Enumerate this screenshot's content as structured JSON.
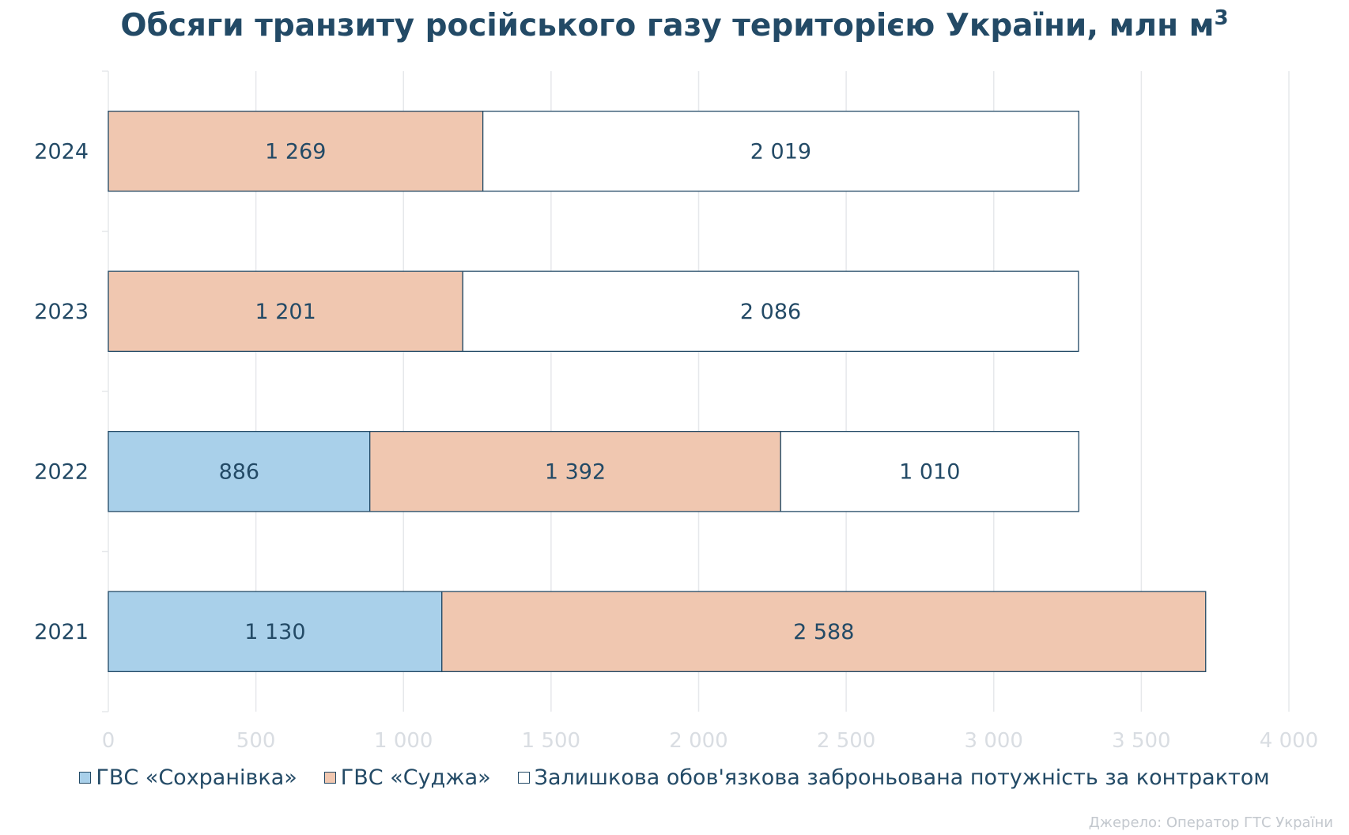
{
  "chart_data": {
    "type": "bar",
    "orientation": "horizontal",
    "stacked": true,
    "title": "Обсяги транзиту російського газу територією України, млн м",
    "title_superscript": "3",
    "categories": [
      "2024",
      "2023",
      "2022",
      "2021"
    ],
    "series": [
      {
        "name": "ГВС «Сохранівка»",
        "color": "#a9d0ea",
        "values": [
          null,
          null,
          886,
          1130
        ],
        "labels": [
          "",
          "",
          "886",
          "1 130"
        ]
      },
      {
        "name": "ГВС «Суджа»",
        "color": "#f0c7b0",
        "values": [
          1269,
          1201,
          1392,
          2588
        ],
        "labels": [
          "1 269",
          "1 201",
          "1 392",
          "2 588"
        ]
      },
      {
        "name": "Залишкова обов'язкова заброньована потужність за контрактом",
        "color": "#ffffff",
        "values": [
          2019,
          2086,
          1010,
          null
        ],
        "labels": [
          "2 019",
          "2 086",
          "1 010",
          ""
        ]
      }
    ],
    "xlim": [
      0,
      4000
    ],
    "xticks": [
      0,
      500,
      1000,
      1500,
      2000,
      2500,
      3000,
      3500,
      4000
    ],
    "xtick_labels": [
      "0",
      "500",
      "1 000",
      "1 500",
      "2 000",
      "2 500",
      "3 000",
      "3 500",
      "4 000"
    ],
    "grid": "vertical",
    "legend_position": "bottom",
    "bar_outline_color": "#234a66",
    "text_color": "#234a66",
    "source_note": "Джерело: Оператор ГТС України"
  }
}
